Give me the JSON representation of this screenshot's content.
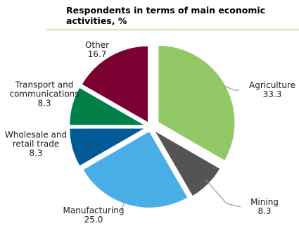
{
  "chart_data": {
    "type": "pie",
    "title": "Respondents in terms of main economic activities, %",
    "slices": [
      {
        "label": "Agriculture",
        "value": 33.3,
        "value_label": "33.3",
        "color": "#92c966"
      },
      {
        "label": "Mining",
        "value": 8.3,
        "value_label": "8.3",
        "color": "#545454"
      },
      {
        "label": "Manufacturing",
        "value": 25.0,
        "value_label": "25.0",
        "color": "#4aaee6"
      },
      {
        "label": "Wholesale and retail trade",
        "value": 8.3,
        "value_label": "8.3",
        "color": "#035a96"
      },
      {
        "label": "Transport and communications",
        "value": 8.3,
        "value_label": "8.3",
        "color": "#007f47"
      },
      {
        "label": "Other",
        "value": 16.7,
        "value_label": "16.7",
        "color": "#7b0032"
      }
    ],
    "start_angle_deg": 0,
    "direction": "clockwise",
    "exploded": true,
    "legend": "none",
    "label_line_color": "#8c8c8c"
  }
}
